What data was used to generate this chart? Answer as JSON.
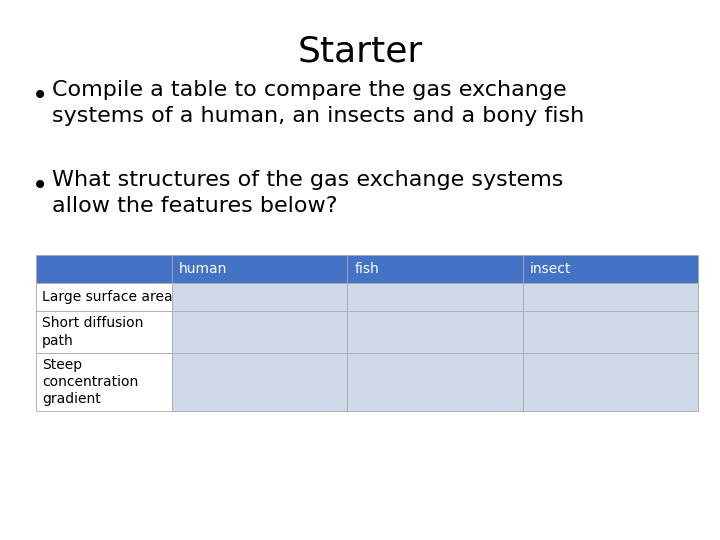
{
  "title": "Starter",
  "title_fontsize": 26,
  "bullet_points": [
    "Compile a table to compare the gas exchange\nsystems of a human, an insects and a bony fish",
    "What structures of the gas exchange systems\nallow the features below?"
  ],
  "bullet_fontsize": 16,
  "table_header": [
    "",
    "human",
    "fish",
    "insect"
  ],
  "table_rows": [
    [
      "Large surface area",
      "",
      "",
      ""
    ],
    [
      "Short diffusion\npath",
      "",
      "",
      ""
    ],
    [
      "Steep\nconcentration\ngradient",
      "",
      "",
      ""
    ]
  ],
  "header_bg": "#4472C4",
  "header_text_color": "#ffffff",
  "row_bg": "#cfd9ea",
  "label_bg": "#ffffff",
  "table_fontsize": 10,
  "background_color": "#ffffff",
  "text_color": "#000000",
  "fig_width": 7.2,
  "fig_height": 5.4,
  "fig_dpi": 100
}
